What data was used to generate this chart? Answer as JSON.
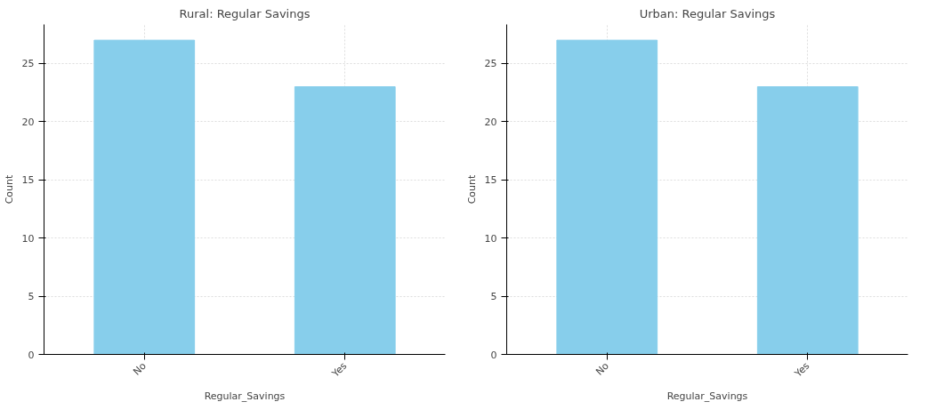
{
  "chart_data": [
    {
      "type": "bar",
      "title": "Rural: Regular Savings",
      "xlabel": "Regular_Savings",
      "ylabel": "Count",
      "categories": [
        "No",
        "Yes"
      ],
      "values": [
        27,
        23
      ],
      "color": "#87ceeb",
      "ylim": [
        0,
        28.35
      ],
      "yticks": [
        0,
        5,
        10,
        15,
        20,
        25
      ],
      "grid": true
    },
    {
      "type": "bar",
      "title": "Urban: Regular Savings",
      "xlabel": "Regular_Savings",
      "ylabel": "Count",
      "categories": [
        "No",
        "Yes"
      ],
      "values": [
        27,
        23
      ],
      "color": "#87ceeb",
      "ylim": [
        0,
        28.35
      ],
      "yticks": [
        0,
        5,
        10,
        15,
        20,
        25
      ],
      "grid": true
    }
  ]
}
